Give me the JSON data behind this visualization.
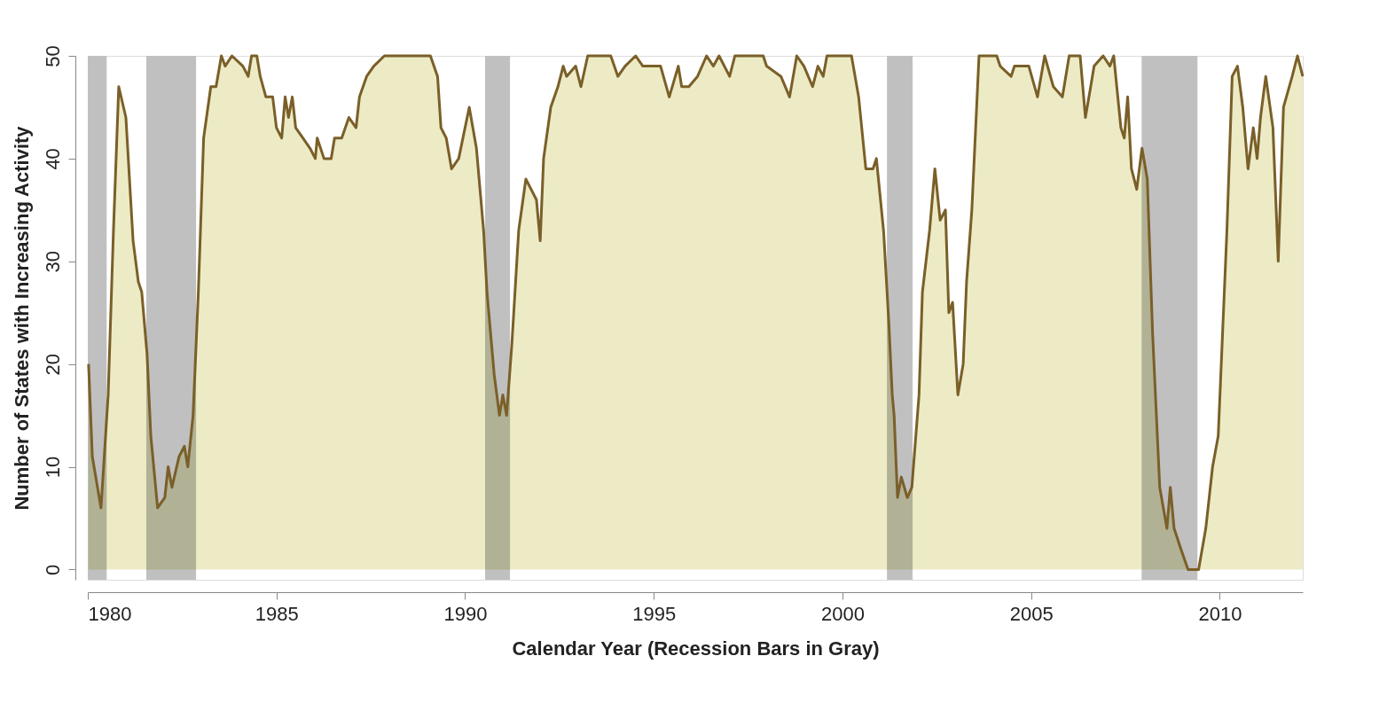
{
  "chart_data": {
    "type": "area",
    "xlabel": "Calendar Year (Recession Bars in Gray)",
    "ylabel": "Number of States with Increasing Activity",
    "xlim": [
      1980,
      2012.2
    ],
    "ylim": [
      -1,
      50
    ],
    "xticks": [
      1980,
      1985,
      1990,
      1995,
      2000,
      2005,
      2010
    ],
    "yticks": [
      0,
      10,
      20,
      30,
      40,
      50
    ],
    "grid": false,
    "series": [
      {
        "color": "#7a5f28",
        "x": [
          1980.02,
          1980.12,
          1980.35,
          1980.54,
          1980.68,
          1980.82,
          1981.01,
          1981.2,
          1981.34,
          1981.43,
          1981.57,
          1981.67,
          1981.85,
          1982.04,
          1982.13,
          1982.23,
          1982.42,
          1982.56,
          1982.65,
          1982.79,
          1982.93,
          1983.07,
          1983.26,
          1983.4,
          1983.54,
          1983.64,
          1983.82,
          1984.11,
          1984.25,
          1984.34,
          1984.48,
          1984.57,
          1984.72,
          1984.9,
          1985.0,
          1985.14,
          1985.23,
          1985.32,
          1985.42,
          1985.51,
          1985.7,
          1985.89,
          1986.03,
          1986.08,
          1986.26,
          1986.45,
          1986.54,
          1986.73,
          1986.92,
          1987.11,
          1987.2,
          1987.39,
          1987.58,
          1987.86,
          1989.08,
          1989.27,
          1989.36,
          1989.5,
          1989.64,
          1989.83,
          1990.11,
          1990.3,
          1990.49,
          1990.58,
          1990.77,
          1990.91,
          1991.0,
          1991.1,
          1991.24,
          1991.42,
          1991.61,
          1991.75,
          1991.89,
          1991.99,
          1992.08,
          1992.27,
          1992.46,
          1992.6,
          1992.69,
          1992.93,
          1993.07,
          1993.25,
          1993.86,
          1994.05,
          1994.24,
          1994.52,
          1994.71,
          1995.18,
          1995.41,
          1995.65,
          1995.74,
          1995.93,
          1996.16,
          1996.4,
          1996.58,
          1996.73,
          1997.01,
          1997.15,
          1997.9,
          1997.99,
          1998.37,
          1998.6,
          1998.79,
          1998.98,
          1999.21,
          1999.35,
          1999.49,
          1999.59,
          2000.24,
          2000.43,
          2000.62,
          2000.81,
          2000.9,
          2001.09,
          2001.23,
          2001.32,
          2001.37,
          2001.46,
          2001.56,
          2001.72,
          2001.84,
          2002.03,
          2002.12,
          2002.31,
          2002.45,
          2002.59,
          2002.73,
          2002.82,
          2002.92,
          2003.06,
          2003.2,
          2003.29,
          2003.43,
          2003.62,
          2004.09,
          2004.18,
          2004.47,
          2004.56,
          2004.94,
          2005.17,
          2005.36,
          2005.59,
          2005.83,
          2006.01,
          2006.3,
          2006.44,
          2006.58,
          2006.67,
          2006.91,
          2007.09,
          2007.19,
          2007.38,
          2007.47,
          2007.56,
          2007.66,
          2007.8,
          2007.94,
          2008.08,
          2008.22,
          2008.41,
          2008.6,
          2008.69,
          2008.79,
          2008.97,
          2009.16,
          2009.44,
          2009.63,
          2009.81,
          2009.96,
          2010.19,
          2010.33,
          2010.47,
          2010.61,
          2010.75,
          2010.89,
          2010.99,
          2011.08,
          2011.22,
          2011.41,
          2011.55,
          2011.69,
          2011.92,
          2012.06,
          2012.2
        ],
        "values": [
          20,
          11,
          6,
          17,
          33,
          47,
          44,
          32,
          28,
          27,
          21,
          13,
          6,
          7,
          10,
          8,
          11,
          12,
          10,
          15,
          27,
          42,
          47,
          47,
          50,
          49,
          50,
          49,
          48,
          50,
          50,
          48,
          46,
          46,
          43,
          42,
          46,
          44,
          46,
          43,
          42,
          41,
          40,
          42,
          40,
          40,
          42,
          42,
          44,
          43,
          46,
          48,
          49,
          50,
          50,
          48,
          43,
          42,
          39,
          40,
          45,
          41,
          33,
          27,
          19,
          15,
          17,
          15,
          22,
          33,
          38,
          37,
          36,
          32,
          40,
          45,
          47,
          49,
          48,
          49,
          47,
          50,
          50,
          48,
          49,
          50,
          49,
          49,
          46,
          49,
          47,
          47,
          48,
          50,
          49,
          50,
          48,
          50,
          50,
          49,
          48,
          46,
          50,
          49,
          47,
          49,
          48,
          50,
          50,
          46,
          39,
          39,
          40,
          33,
          24,
          17,
          15,
          7,
          9,
          7,
          8,
          17,
          27,
          33,
          39,
          34,
          35,
          25,
          26,
          17,
          20,
          28,
          35,
          50,
          50,
          49,
          48,
          49,
          49,
          46,
          50,
          47,
          46,
          50,
          50,
          44,
          47,
          49,
          50,
          49,
          50,
          43,
          42,
          46,
          39,
          37,
          41,
          38,
          23,
          8,
          4,
          8,
          4,
          2,
          0,
          0,
          4,
          10,
          13,
          33,
          48,
          49,
          45,
          39,
          43,
          40,
          44,
          48,
          43,
          30,
          45,
          48,
          50,
          48
        ]
      }
    ],
    "bands": [
      {
        "axis": "x",
        "from": 1980.0,
        "to": 1980.5,
        "color": "#c0c0c0"
      },
      {
        "axis": "x",
        "from": 1981.55,
        "to": 1982.87,
        "color": "#c0c0c0"
      },
      {
        "axis": "x",
        "from": 1990.53,
        "to": 1991.19,
        "color": "#c0c0c0"
      },
      {
        "axis": "x",
        "from": 2001.18,
        "to": 2001.86,
        "color": "#c0c0c0"
      },
      {
        "axis": "x",
        "from": 2007.93,
        "to": 2009.41,
        "color": "#c0c0c0"
      }
    ]
  }
}
